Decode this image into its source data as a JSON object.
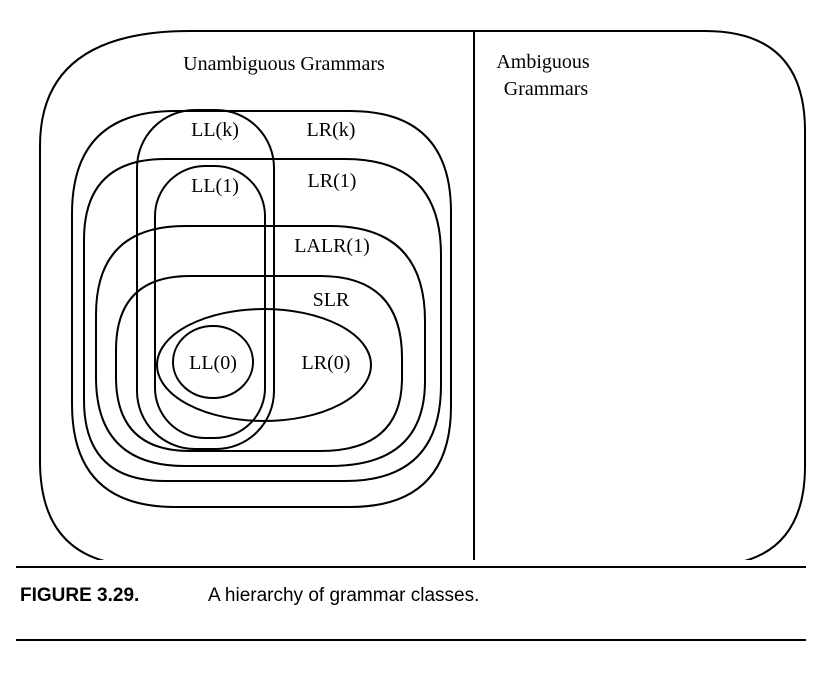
{
  "diagram": {
    "unambiguous_label": "Unambiguous Grammars",
    "ambiguous_label_line1": "Ambiguous",
    "ambiguous_label_line2": "Grammars",
    "classes": {
      "llk": "LL(k)",
      "lrk": "LR(k)",
      "ll1": "LL(1)",
      "lr1": "LR(1)",
      "lalr1": "LALR(1)",
      "slr": "SLR",
      "ll0": "LL(0)",
      "lr0": "LR(0)"
    }
  },
  "caption": {
    "number": "FIGURE 3.29.",
    "text": "A hierarchy of grammar classes."
  },
  "colors": {
    "stroke": "#000000",
    "background": "#ffffff"
  }
}
